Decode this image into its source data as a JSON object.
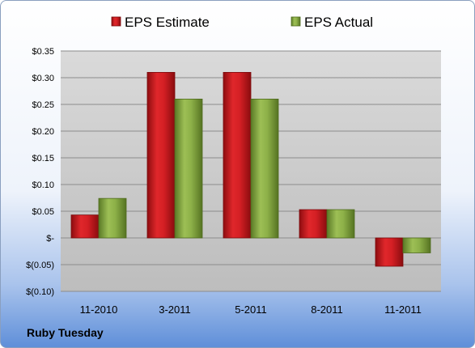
{
  "chart_data": {
    "type": "bar",
    "title": "",
    "categories": [
      "11-2010",
      "3-2011",
      "5-2011",
      "8-2011",
      "11-2011"
    ],
    "series": [
      {
        "name": "EPS Estimate",
        "values": [
          0.043,
          0.31,
          0.31,
          0.053,
          -0.053
        ],
        "color": "#c0161b"
      },
      {
        "name": "EPS Actual",
        "values": [
          0.074,
          0.26,
          0.26,
          0.053,
          -0.028
        ],
        "color": "#7fa23c"
      }
    ],
    "ylim": [
      -0.1,
      0.35
    ],
    "yticks": [
      {
        "value": 0.35,
        "label": "$0.35"
      },
      {
        "value": 0.3,
        "label": "$0.30"
      },
      {
        "value": 0.25,
        "label": "$0.25"
      },
      {
        "value": 0.2,
        "label": "$0.20"
      },
      {
        "value": 0.15,
        "label": "$0.15"
      },
      {
        "value": 0.1,
        "label": "$0.10"
      },
      {
        "value": 0.05,
        "label": "$0.05"
      },
      {
        "value": 0.0,
        "label": "$-"
      },
      {
        "value": -0.05,
        "label": "$(0.05)"
      },
      {
        "value": -0.1,
        "label": "$(0.10)"
      }
    ],
    "grid": true,
    "legend": "top"
  },
  "footer": {
    "company": "Ruby Tuesday"
  }
}
